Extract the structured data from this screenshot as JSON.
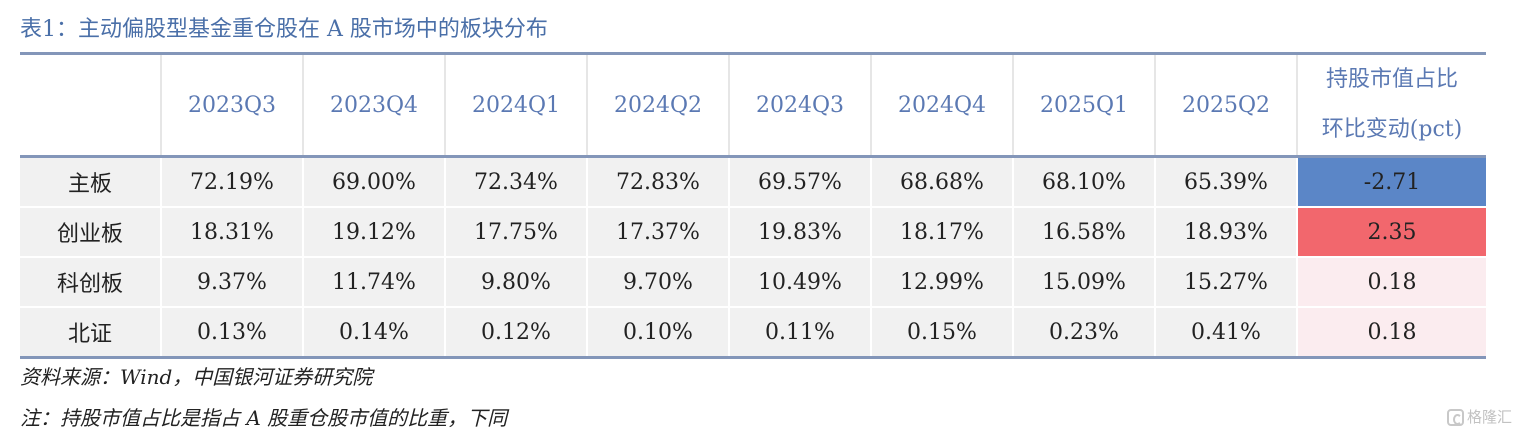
{
  "title": "表1：主动偏股型基金重仓股在 A 股市场中的板块分布",
  "table": {
    "columns": [
      "",
      "2023Q3",
      "2023Q4",
      "2024Q1",
      "2024Q2",
      "2024Q3",
      "2024Q4",
      "2025Q1",
      "2025Q2"
    ],
    "last_column_line1": "持股市值占比",
    "last_column_line2": "环比变动(pct)",
    "rows": [
      {
        "label": "主板",
        "values": [
          "72.19%",
          "69.00%",
          "72.34%",
          "72.83%",
          "69.57%",
          "68.68%",
          "68.10%",
          "65.39%"
        ],
        "change": "-2.71",
        "change_color": "#5b86c7"
      },
      {
        "label": "创业板",
        "values": [
          "18.31%",
          "19.12%",
          "17.75%",
          "17.37%",
          "19.83%",
          "18.17%",
          "16.58%",
          "18.93%"
        ],
        "change": "2.35",
        "change_color": "#f2676d"
      },
      {
        "label": "科创板",
        "values": [
          "9.37%",
          "11.74%",
          "9.80%",
          "9.70%",
          "10.49%",
          "12.99%",
          "15.09%",
          "15.27%"
        ],
        "change": "0.18",
        "change_color": "#fbecef"
      },
      {
        "label": "北证",
        "values": [
          "0.13%",
          "0.14%",
          "0.12%",
          "0.10%",
          "0.11%",
          "0.15%",
          "0.23%",
          "0.41%"
        ],
        "change": "0.18",
        "change_color": "#fbecef"
      }
    ]
  },
  "source": "资料来源：Wind，中国银河证券研究院",
  "note": "注：持股市值占比是指占 A 股重仓股市值的比重，下同",
  "watermark": "格隆汇"
}
